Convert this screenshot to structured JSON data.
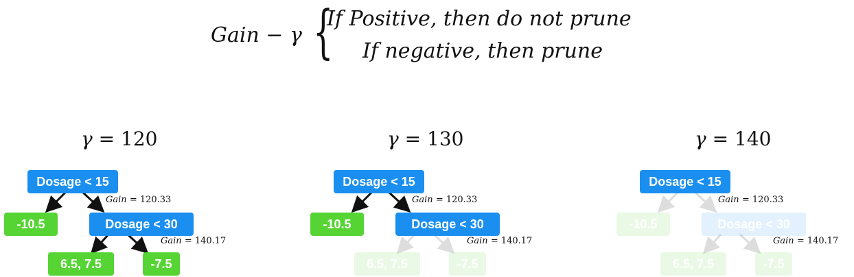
{
  "formula": {
    "left": "Gain − γ",
    "case_positive": "If Positive, then do not prune",
    "case_negative": "If negative, then prune"
  },
  "trees": [
    {
      "gamma_symbol": "γ",
      "gamma_value": "= 120",
      "root_label": "Dosage < 15",
      "root_gain_key": "Gain",
      "root_gain_value": "= 120.33",
      "left_leaf": "-10.5",
      "child_label": "Dosage < 30",
      "child_gain_key": "Gain",
      "child_gain_value": "= 140.17",
      "leaf_a": "6.5, 7.5",
      "leaf_b": "-7.5"
    },
    {
      "gamma_symbol": "γ",
      "gamma_value": "= 130",
      "root_label": "Dosage < 15",
      "root_gain_key": "Gain",
      "root_gain_value": "= 120.33",
      "left_leaf": "-10.5",
      "child_label": "Dosage < 30",
      "child_gain_key": "Gain",
      "child_gain_value": "= 140.17",
      "leaf_a": "6.5, 7.5",
      "leaf_b": "-7.5"
    },
    {
      "gamma_symbol": "γ",
      "gamma_value": "= 140",
      "root_label": "Dosage < 15",
      "root_gain_key": "Gain",
      "root_gain_value": "= 120.33",
      "left_leaf": "-10.5",
      "child_label": "Dosage < 30",
      "child_gain_key": "Gain",
      "child_gain_value": "= 140.17",
      "leaf_a": "6.5, 7.5",
      "leaf_b": "-7.5"
    }
  ],
  "colors": {
    "node_blue": "#1a8ff0",
    "leaf_green": "#55d433",
    "edge": "#111111"
  }
}
